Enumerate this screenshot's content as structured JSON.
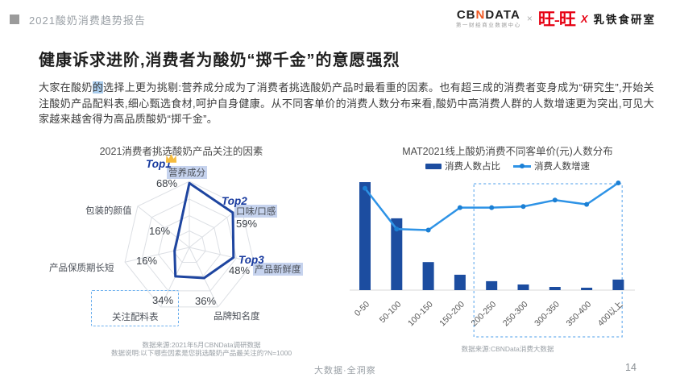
{
  "header": {
    "report_label": "2021酸奶消费趋势报告"
  },
  "logos": {
    "cbn_left": "CB",
    "cbn_n": "N",
    "cbn_right": "DATA",
    "cbn_sub": "第一财经商业数据中心",
    "times": "×",
    "wantwant": "旺-旺",
    "collab_x": "X",
    "lab_name": "乳铁食研室"
  },
  "headline": "健康诉求进阶,消费者为酸奶“掷千金”的意愿强烈",
  "paragraph": {
    "pre": "大家在酸奶",
    "highlight": "的",
    "post": "选择上更为挑剔:营养成分成为了消费者挑选酸奶产品时最看重的因素。也有超三成的消费者变身成为“研究生”,开始关注酸奶产品配料表,细心甄选食材,呵护自身健康。从不同客单价的消费人数分布来看,酸奶中高消费人群的人数增速更为突出,可见大家越来越舍得为高品质酸奶“掷千金”。"
  },
  "colors": {
    "bar_blue": "#1c4da0",
    "radar_blue": "#1e45a0",
    "line_blue": "#2e93e6",
    "dot_blue": "#1b7fd4",
    "grid_gray": "#dcdfe4",
    "highlight_bg": "#c6d3ee",
    "dashed_blue": "#6fb1ee",
    "brand_red": "#e60012",
    "logo_orange": "#f05a24"
  },
  "chart_data": [
    {
      "type": "radar",
      "title": "2021消费者挑选酸奶产品关注的因素",
      "categories": [
        "营养成分",
        "口味/口感",
        "产品新鲜度",
        "品牌知名度",
        "关注配料表",
        "产品保质期长短",
        "包装的颜值"
      ],
      "values_pct": [
        68,
        59,
        48,
        36,
        34,
        16,
        16
      ],
      "value_labels": [
        "68%",
        "59%",
        "48%",
        "36%",
        "34%",
        "16%",
        "16%"
      ],
      "axis_max": 70,
      "rings": 4,
      "top_badges": [
        "Top1",
        "Top2",
        "Top3"
      ],
      "legend": "none",
      "source_line1": "数据来源:2021年5月CBNData调研数据",
      "source_line2": "数据说明:以下哪些因素是您挑选酸奶产品最关注的?N=1000"
    },
    {
      "type": "bar+line",
      "title": "MAT2021线上酸奶消费不同客单价(元)人数分布",
      "categories": [
        "0-50",
        "50-100",
        "100-150",
        "150-200",
        "200-250",
        "250-300",
        "300-350",
        "350-400",
        "400以上"
      ],
      "series": [
        {
          "name": "消费人数占比",
          "type": "bar",
          "values": [
            40,
            26.6,
            10.4,
            5.7,
            3.3,
            2.1,
            1.2,
            0.9,
            3.9
          ]
        },
        {
          "name": "消费人数增速",
          "type": "line",
          "values": [
            95,
            57,
            56,
            77,
            77,
            78,
            84,
            80,
            100
          ]
        }
      ],
      "y_axis_visible": false,
      "values_estimated_from_pixels": true,
      "highlight_box_from": "200-250",
      "highlight_box_to": "400以上",
      "legend_position": "top",
      "source": "数据来源:CBNData消费大数据"
    }
  ],
  "footer": {
    "brand": "大数据·全洞察",
    "page_number": "14"
  }
}
